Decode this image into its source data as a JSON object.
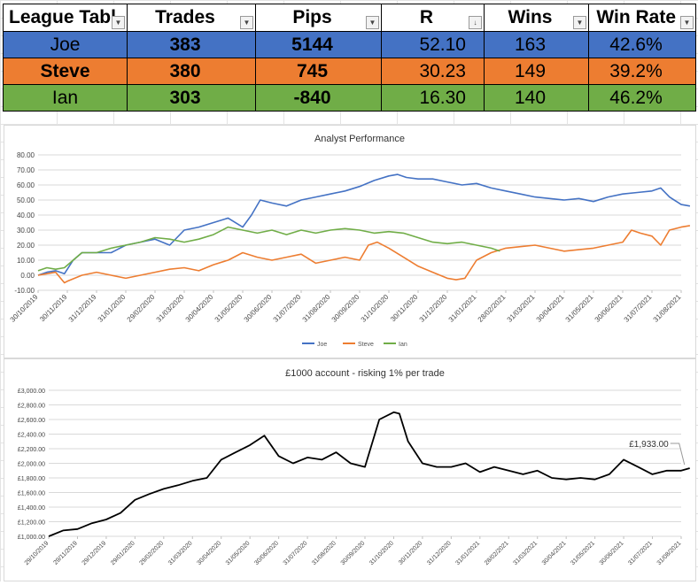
{
  "table": {
    "headers": [
      "League Tabl",
      "Trades",
      "Pips",
      "R",
      "Wins",
      "Win Rate"
    ],
    "rows": [
      {
        "name": "Joe",
        "trades": "383",
        "pips": "5144",
        "r": "52.10",
        "wins": "163",
        "win_rate": "42.6%",
        "color": "#4472c4"
      },
      {
        "name": "Steve",
        "trades": "380",
        "pips": "745",
        "r": "30.23",
        "wins": "149",
        "win_rate": "39.2%",
        "color": "#ed7d31"
      },
      {
        "name": "Ian",
        "trades": "303",
        "pips": "-840",
        "r": "16.30",
        "wins": "140",
        "win_rate": "46.2%",
        "color": "#70ad47"
      }
    ]
  },
  "chart_data": [
    {
      "type": "line",
      "title": "Analyst Performance",
      "xlabel": "",
      "ylabel": "",
      "ylim": [
        -10,
        80
      ],
      "y_ticks": [
        "-10.00",
        "0.00",
        "10.00",
        "20.00",
        "30.00",
        "40.00",
        "50.00",
        "60.00",
        "70.00",
        "80.00"
      ],
      "x_ticks": [
        "30/10/2019",
        "30/11/2019",
        "31/12/2019",
        "31/01/2020",
        "29/02/2020",
        "31/03/2020",
        "30/04/2020",
        "31/05/2020",
        "30/06/2020",
        "31/07/2020",
        "31/08/2020",
        "30/09/2020",
        "31/10/2020",
        "30/11/2020",
        "31/12/2020",
        "31/01/2021",
        "28/02/2021",
        "31/03/2021",
        "30/04/2021",
        "31/05/2021",
        "30/06/2021",
        "31/07/2021",
        "31/08/2021"
      ],
      "grid": true,
      "legend_position": "bottom",
      "series": [
        {
          "name": "Joe",
          "color": "#4472c4",
          "x": [
            0,
            0.3,
            0.6,
            0.9,
            1.2,
            1.5,
            2,
            2.5,
            3,
            3.5,
            4,
            4.5,
            5,
            5.5,
            6,
            6.5,
            7,
            7.3,
            7.6,
            8,
            8.5,
            9,
            9.5,
            10,
            10.5,
            11,
            11.5,
            12,
            12.3,
            12.6,
            13,
            13.5,
            14,
            14.5,
            15,
            15.5,
            16,
            16.5,
            17,
            17.5,
            18,
            18.5,
            19,
            19.5,
            20,
            20.5,
            21,
            21.3,
            21.6,
            22,
            22.3
          ],
          "y": [
            0,
            2,
            3,
            1,
            10,
            15,
            15,
            15,
            20,
            22,
            24,
            20,
            30,
            32,
            35,
            38,
            32,
            40,
            50,
            48,
            46,
            50,
            52,
            54,
            56,
            59,
            63,
            66,
            67,
            65,
            64,
            64,
            62,
            60,
            61,
            58,
            56,
            54,
            52,
            51,
            50,
            51,
            49,
            52,
            54,
            55,
            56,
            58,
            52,
            47,
            46
          ]
        },
        {
          "name": "Steve",
          "color": "#ed7d31",
          "x": [
            0,
            0.3,
            0.6,
            0.9,
            1,
            1.5,
            2,
            2.5,
            3,
            3.5,
            4,
            4.5,
            5,
            5.5,
            6,
            6.5,
            7,
            7.5,
            8,
            8.5,
            9,
            9.5,
            10,
            10.5,
            11,
            11.3,
            11.6,
            12,
            12.5,
            13,
            13.5,
            14,
            14.3,
            14.6,
            15,
            15.5,
            16,
            16.5,
            17,
            17.5,
            18,
            18.5,
            19,
            19.5,
            20,
            20.3,
            20.6,
            21,
            21.3,
            21.6,
            22,
            22.3
          ],
          "y": [
            0,
            1,
            2,
            -5,
            -4,
            0,
            2,
            0,
            -2,
            0,
            2,
            4,
            5,
            3,
            7,
            10,
            15,
            12,
            10,
            12,
            14,
            8,
            10,
            12,
            10,
            20,
            22,
            18,
            12,
            6,
            2,
            -2,
            -3,
            -2,
            10,
            15,
            18,
            19,
            20,
            18,
            16,
            17,
            18,
            20,
            22,
            30,
            28,
            26,
            20,
            30,
            32,
            33
          ]
        },
        {
          "name": "Ian",
          "color": "#70ad47",
          "x": [
            0,
            0.3,
            0.6,
            0.9,
            1.2,
            1.5,
            2,
            2.5,
            3,
            3.5,
            4,
            4.5,
            5,
            5.5,
            6,
            6.5,
            7,
            7.5,
            8,
            8.5,
            9,
            9.5,
            10,
            10.5,
            11,
            11.5,
            12,
            12.5,
            13,
            13.5,
            14,
            14.5,
            15,
            15.5,
            15.8
          ],
          "y": [
            3,
            5,
            4,
            5,
            10,
            15,
            15,
            18,
            20,
            22,
            25,
            24,
            22,
            24,
            27,
            32,
            30,
            28,
            30,
            27,
            30,
            28,
            30,
            31,
            30,
            28,
            29,
            28,
            25,
            22,
            21,
            22,
            20,
            18,
            16
          ]
        }
      ]
    },
    {
      "type": "line",
      "title": "£1000 account - risking 1% per trade",
      "xlabel": "",
      "ylabel": "",
      "ylim": [
        1000,
        3000
      ],
      "y_ticks": [
        "£1,000.00",
        "£1,200.00",
        "£1,400.00",
        "£1,600.00",
        "£1,800.00",
        "£2,000.00",
        "£2,200.00",
        "£2,400.00",
        "£2,600.00",
        "£2,800.00",
        "£3,000.00"
      ],
      "x_ticks": [
        "29/10/2019",
        "29/11/2019",
        "29/12/2019",
        "29/01/2020",
        "29/02/2020",
        "31/03/2020",
        "30/04/2020",
        "31/05/2020",
        "30/06/2020",
        "31/07/2020",
        "31/08/2020",
        "30/09/2020",
        "31/10/2020",
        "30/11/2020",
        "31/12/2020",
        "31/01/2021",
        "28/02/2021",
        "31/03/2021",
        "30/04/2021",
        "31/05/2021",
        "30/06/2021",
        "31/07/2021",
        "31/08/2021"
      ],
      "annotation": "£1,933.00",
      "grid": true,
      "series": [
        {
          "name": "",
          "color": "#000000",
          "x": [
            0,
            0.5,
            1,
            1.5,
            2,
            2.5,
            3,
            3.5,
            4,
            4.5,
            5,
            5.5,
            6,
            6.5,
            7,
            7.5,
            8,
            8.5,
            9,
            9.5,
            10,
            10.5,
            11,
            11.5,
            12,
            12.2,
            12.5,
            13,
            13.5,
            14,
            14.5,
            15,
            15.5,
            16,
            16.5,
            17,
            17.5,
            18,
            18.5,
            19,
            19.5,
            20,
            20.5,
            21,
            21.5,
            22,
            22.3
          ],
          "y": [
            1000,
            1080,
            1100,
            1180,
            1230,
            1320,
            1500,
            1580,
            1650,
            1700,
            1760,
            1800,
            2050,
            2150,
            2250,
            2380,
            2100,
            2000,
            2080,
            2050,
            2150,
            2000,
            1950,
            2600,
            2700,
            2680,
            2300,
            2000,
            1950,
            1950,
            2000,
            1880,
            1950,
            1900,
            1850,
            1900,
            1800,
            1780,
            1800,
            1780,
            1850,
            2050,
            1950,
            1850,
            1900,
            1900,
            1933
          ]
        }
      ]
    }
  ]
}
